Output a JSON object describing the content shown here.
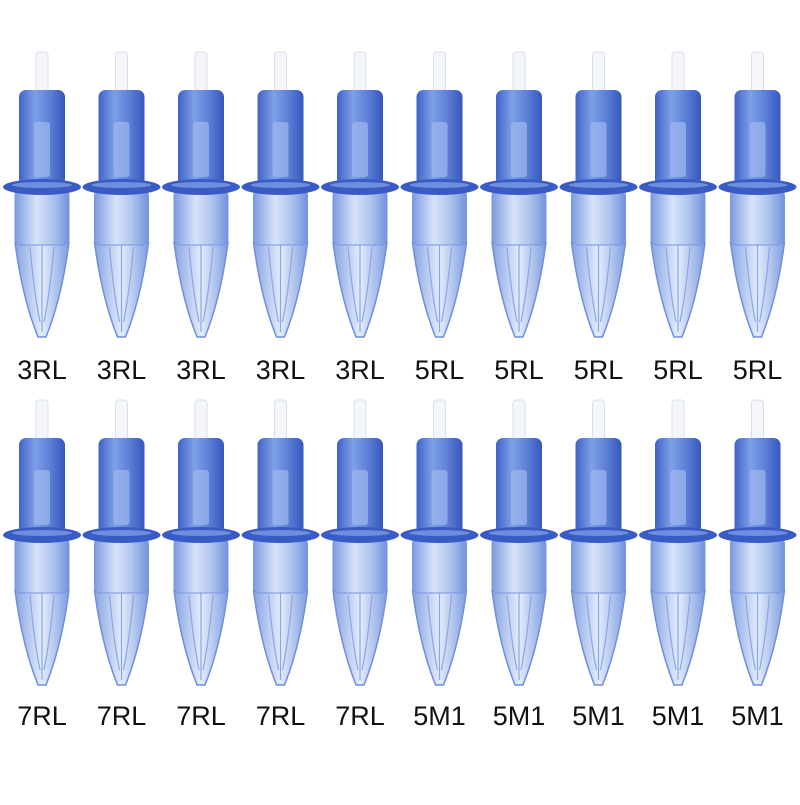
{
  "rows": [
    {
      "labels": [
        "3RL",
        "3RL",
        "3RL",
        "3RL",
        "3RL",
        "5RL",
        "5RL",
        "5RL",
        "5RL",
        "5RL"
      ]
    },
    {
      "labels": [
        "7RL",
        "7RL",
        "7RL",
        "7RL",
        "7RL",
        "5M1",
        "5M1",
        "5M1",
        "5M1",
        "5M1"
      ]
    }
  ]
}
